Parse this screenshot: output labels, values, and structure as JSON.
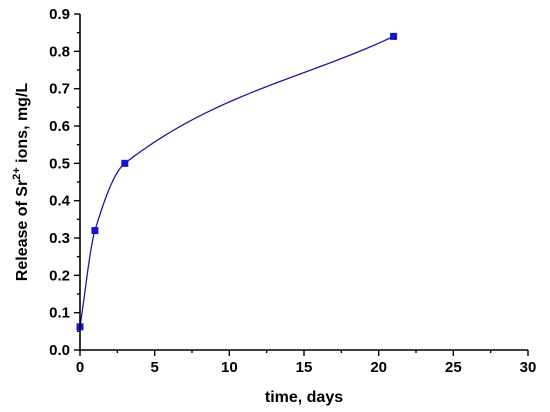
{
  "chart_data": {
    "type": "line",
    "title": "",
    "xlabel": "time, days",
    "ylabel": {
      "prefix": "Release of Sr",
      "superscript": "2+",
      "suffix": " ions, mg/L"
    },
    "xlim": [
      0,
      30
    ],
    "ylim": [
      0,
      0.9
    ],
    "xticks": [
      "0",
      "5",
      "10",
      "15",
      "20",
      "25",
      "30"
    ],
    "yticks": [
      "0.0",
      "0.1",
      "0.2",
      "0.3",
      "0.4",
      "0.5",
      "0.6",
      "0.7",
      "0.8",
      "0.9"
    ],
    "grid": false,
    "series": [
      {
        "x": [
          0,
          1,
          3,
          21
        ],
        "y": [
          0.062,
          0.32,
          0.5,
          0.84
        ],
        "color": "#1515cc",
        "marker": "square",
        "smooth": true
      }
    ]
  }
}
